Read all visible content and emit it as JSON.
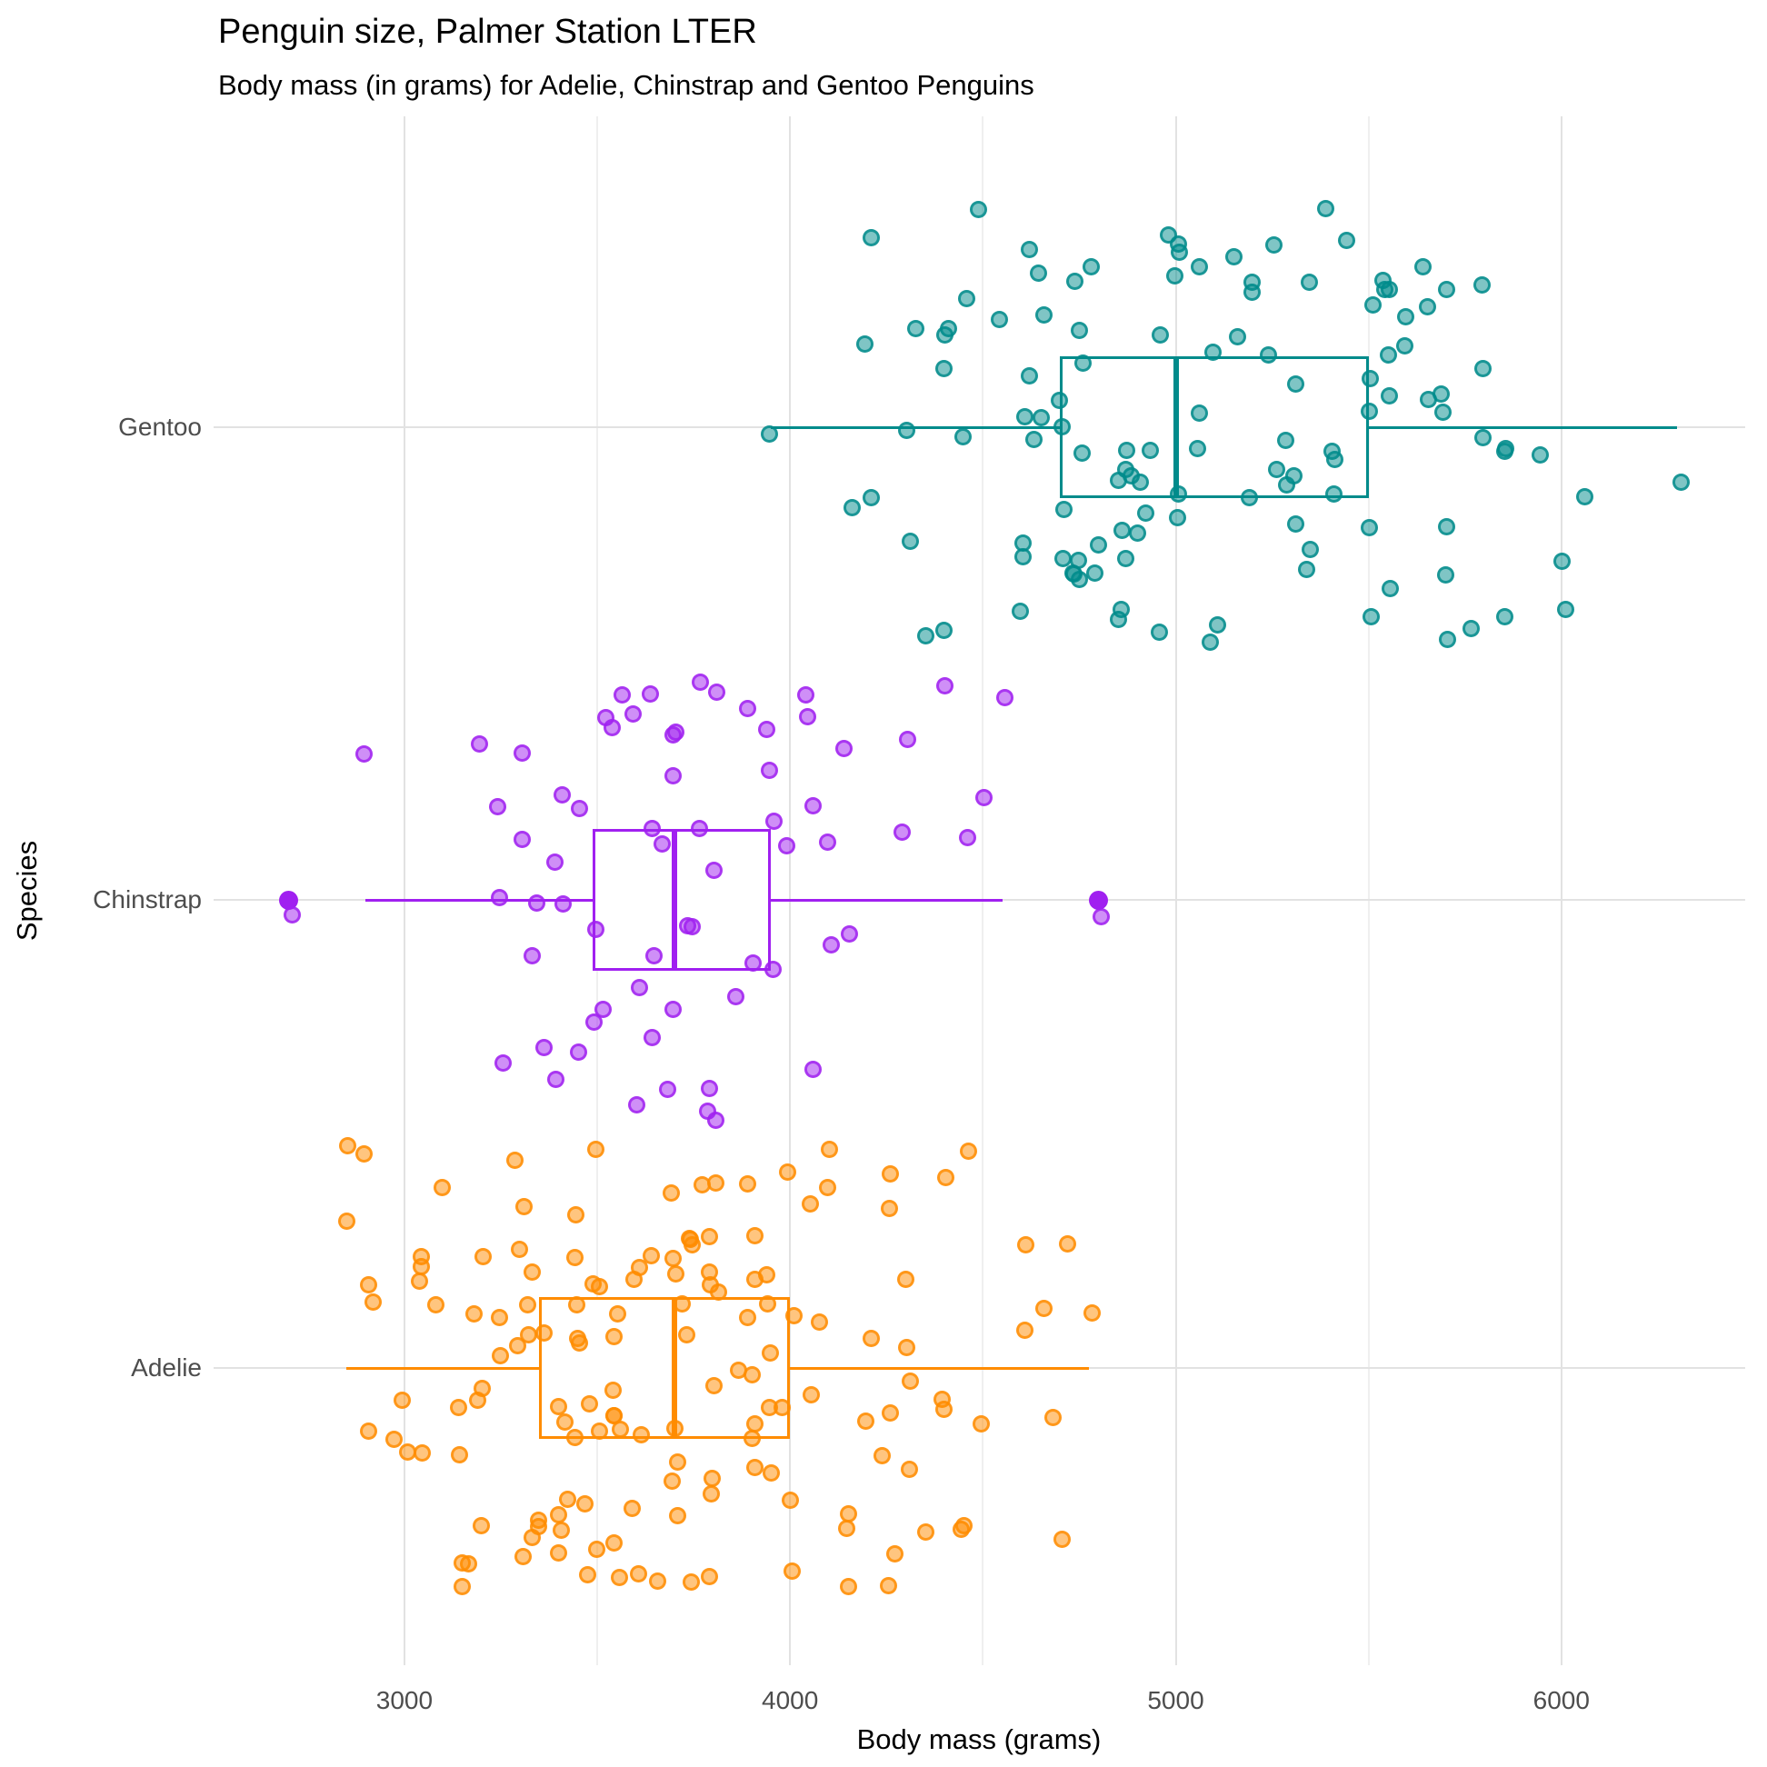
{
  "page": {
    "title": "Penguin size, Palmer Station LTER",
    "subtitle": "Body mass (in grams) for Adelie, Chinstrap and Gentoo Penguins"
  },
  "axes": {
    "x": {
      "label": "Body mass (grams)",
      "ticks": [
        3000,
        4000,
        5000,
        6000
      ],
      "minor_ticks": [
        3500,
        4500,
        5500
      ],
      "range": [
        2505,
        6495
      ]
    },
    "y": {
      "label": "Species",
      "categories_top_to_bottom": [
        "Gentoo",
        "Chinstrap",
        "Adelie"
      ]
    }
  },
  "chart_data": {
    "type": "boxplot+jitter",
    "title": "Penguin size, Palmer Station LTER",
    "subtitle": "Body mass (in grams) for Adelie, Chinstrap and Gentoo Penguins",
    "xlabel": "Body mass (grams)",
    "ylabel": "Species",
    "xlim": [
      2505,
      6495
    ],
    "grid": true,
    "legend": "none",
    "series": [
      {
        "name": "Gentoo",
        "color": "#008B8B",
        "box": {
          "whisker_low": 3950,
          "q1": 4700,
          "median": 5000,
          "q3": 5500,
          "whisker_high": 6300
        },
        "outliers": [],
        "n": 123,
        "points": [
          4500,
          5700,
          4450,
          5700,
          5400,
          4550,
          4800,
          5200,
          4400,
          5150,
          4650,
          5550,
          4650,
          5850,
          4200,
          5850,
          4150,
          6300,
          4800,
          5350,
          5700,
          5000,
          4400,
          5050,
          5000,
          5100,
          5650,
          4600,
          5550,
          5250,
          4700,
          5050,
          6050,
          5150,
          5400,
          4950,
          5250,
          4350,
          5350,
          3950,
          5700,
          4300,
          4750,
          5550,
          4900,
          4200,
          5400,
          5100,
          5300,
          4850,
          5300,
          4400,
          5000,
          4900,
          5050,
          4300,
          5000,
          4450,
          5550,
          4200,
          5300,
          4400,
          5650,
          4700,
          5700,
          4650,
          5800,
          4700,
          5550,
          4750,
          5000,
          5100,
          5200,
          4700,
          5800,
          4600,
          6000,
          4750,
          5950,
          4625,
          5450,
          4725,
          5350,
          4750,
          5600,
          4600,
          5300,
          4875,
          5550,
          4950,
          5400,
          4750,
          5650,
          4850,
          5200,
          4925,
          4875,
          4625,
          5250,
          4850,
          5600,
          4975,
          5500,
          4725,
          5500,
          4750,
          5500,
          4600,
          5500,
          4875,
          5700,
          4775,
          5500,
          4925,
          5775,
          4625,
          5800,
          4850,
          5275,
          4325,
          5850,
          4875,
          6000
        ]
      },
      {
        "name": "Chinstrap",
        "color": "#A020F0",
        "box": {
          "whisker_low": 2900,
          "q1": 3487.5,
          "median": 3700,
          "q3": 3950,
          "whisker_high": 4550
        },
        "outliers": [
          2700,
          4800
        ],
        "n": 68,
        "points": [
          3500,
          3900,
          3650,
          3525,
          3725,
          3950,
          3250,
          3750,
          4150,
          3700,
          3800,
          3775,
          3700,
          4050,
          3575,
          4050,
          3300,
          3700,
          3450,
          4400,
          3600,
          3400,
          2900,
          3800,
          3300,
          4150,
          3400,
          3800,
          3700,
          4550,
          3200,
          4300,
          3350,
          4100,
          3600,
          3900,
          3850,
          4800,
          2700,
          4500,
          3950,
          3650,
          3550,
          3500,
          3675,
          4450,
          3400,
          4300,
          3250,
          3675,
          3325,
          3950,
          3600,
          4050,
          3350,
          3450,
          3250,
          4050,
          3800,
          3525,
          3950,
          3650,
          3650,
          4000,
          3400,
          3775,
          4100,
          3775
        ]
      },
      {
        "name": "Adelie",
        "color": "#FF8C00",
        "box": {
          "whisker_low": 2850,
          "q1": 3350,
          "median": 3700,
          "q3": 4000,
          "whisker_high": 4775
        },
        "outliers": [],
        "n": 151,
        "points": [
          3750,
          3800,
          3250,
          3450,
          3650,
          3625,
          4675,
          3475,
          4250,
          3300,
          3700,
          3200,
          3800,
          4400,
          3700,
          3450,
          4500,
          3325,
          4200,
          3400,
          3600,
          3800,
          3950,
          3800,
          3800,
          3550,
          3200,
          3150,
          3950,
          3250,
          3900,
          3300,
          3900,
          3325,
          4150,
          3950,
          3550,
          3300,
          4650,
          3150,
          3900,
          3100,
          4400,
          3000,
          4600,
          3425,
          2975,
          3450,
          4150,
          3500,
          4300,
          3450,
          4050,
          2900,
          3700,
          3550,
          3800,
          2850,
          3750,
          3150,
          4400,
          3600,
          4050,
          2850,
          3950,
          3350,
          4100,
          3050,
          4450,
          3600,
          3900,
          3550,
          4150,
          3700,
          4250,
          3700,
          3900,
          3550,
          4000,
          3200,
          4700,
          3800,
          4200,
          3350,
          3550,
          3800,
          3500,
          3950,
          3600,
          3550,
          4300,
          3400,
          4450,
          3300,
          4300,
          3700,
          4350,
          2900,
          4100,
          3725,
          4725,
          3075,
          4250,
          2925,
          3550,
          3750,
          3900,
          3175,
          4775,
          3825,
          4600,
          3200,
          4275,
          3900,
          4075,
          2900,
          3775,
          3350,
          3325,
          3150,
          3500,
          3450,
          3875,
          3050,
          4000,
          3275,
          4300,
          3050,
          4000,
          3325,
          3500,
          3500,
          4475,
          3425,
          3900,
          3175,
          3975,
          3400,
          4250,
          3400,
          3475,
          3050,
          3725,
          3000,
          3650,
          4250,
          3475,
          3450,
          3750,
          3700,
          4000
        ]
      }
    ],
    "colors": {
      "grid_major": "#e2e2e2",
      "grid_minor": "#efefef",
      "tick_text": "#4d4d4d",
      "title_text": "#000000"
    }
  }
}
